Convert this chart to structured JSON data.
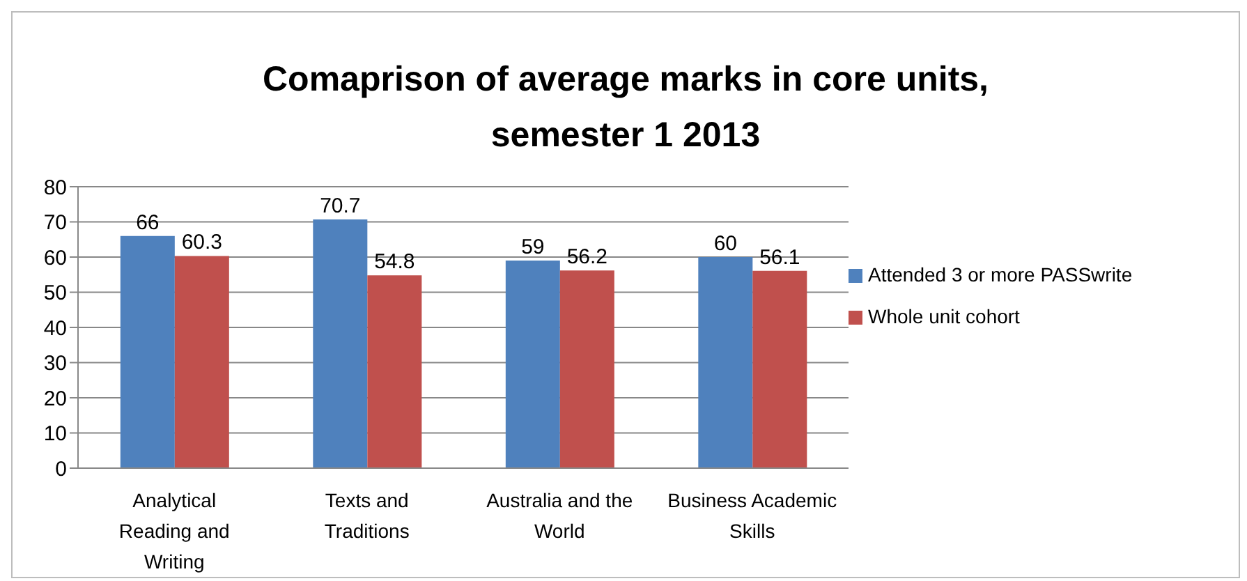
{
  "chart_data": {
    "type": "bar",
    "title": "Comaprison of average marks in core units, semester 1 2013",
    "categories": [
      "Analytical Reading and Writing",
      "Texts and Traditions",
      "Australia and the World",
      "Business Academic Skills"
    ],
    "series": [
      {
        "name": "Attended 3 or more PASSwrite",
        "color": "#4f81bd",
        "values": [
          66,
          70.7,
          59,
          60
        ]
      },
      {
        "name": "Whole unit cohort",
        "color": "#c0504d",
        "values": [
          60.3,
          54.8,
          56.2,
          56.1
        ]
      }
    ],
    "ylim": [
      0,
      80
    ],
    "yticks": [
      0,
      10,
      20,
      30,
      40,
      50,
      60,
      70,
      80
    ],
    "grid": "y",
    "legend": "right",
    "data_labels": true
  }
}
